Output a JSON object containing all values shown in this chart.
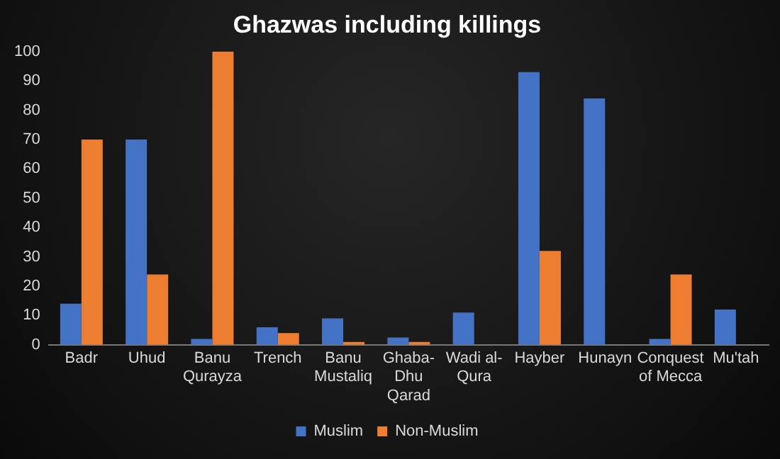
{
  "chart_data": {
    "type": "bar",
    "title": "Ghazwas including killings",
    "categories": [
      "Badr",
      "Uhud",
      "Banu Qurayza",
      "Trench",
      "Banu Mustaliq",
      "Ghaba-Dhu Qarad",
      "Wadi al-Qura",
      "Hayber",
      "Hunayn",
      "Conquest of Mecca",
      "Mu'tah"
    ],
    "series": [
      {
        "name": "Muslim",
        "color": "#4472c4",
        "values": [
          14,
          70,
          2,
          6,
          9,
          2.5,
          11,
          93,
          84,
          2,
          12
        ]
      },
      {
        "name": "Non-Muslim",
        "color": "#ed7d31",
        "values": [
          70,
          24,
          100,
          4,
          1,
          1,
          null,
          32,
          null,
          24,
          null
        ]
      }
    ],
    "ylim": [
      0,
      100
    ],
    "yticks": [
      0,
      10,
      20,
      30,
      40,
      50,
      60,
      70,
      80,
      90,
      100
    ],
    "grid": false,
    "legend": "bottom"
  }
}
